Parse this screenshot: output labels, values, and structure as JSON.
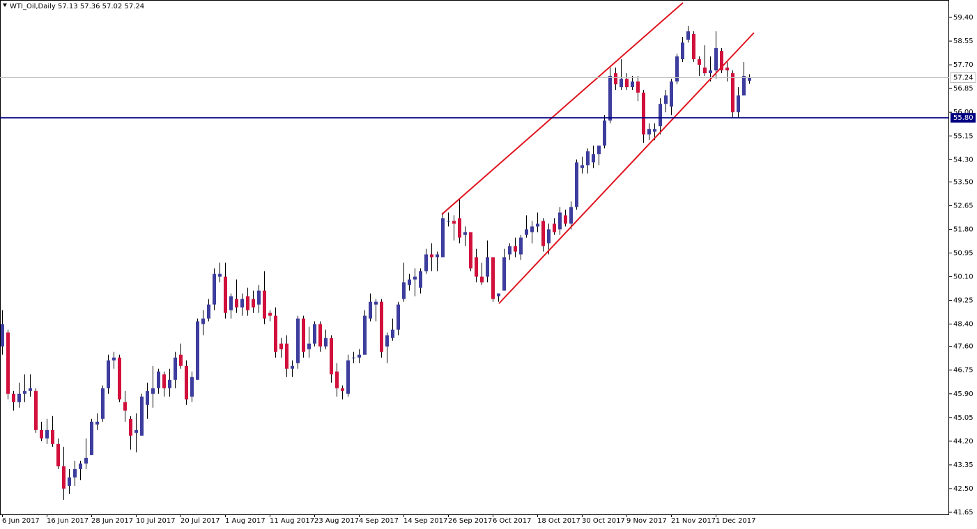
{
  "chart_data": {
    "type": "candlestick",
    "title": "WTI_Oil,Daily  57.13 57.36 57.02 57.24",
    "up_color": "#3d3d9e",
    "down_color": "#d1103c",
    "categories": [
      "6 Jun 2017",
      null,
      null,
      null,
      null,
      null,
      null,
      null,
      "16 Jun 2017",
      null,
      null,
      null,
      null,
      null,
      null,
      null,
      "28 Jun 2017",
      null,
      null,
      null,
      null,
      null,
      null,
      null,
      "10 Jul 2017",
      null,
      null,
      null,
      null,
      null,
      null,
      null,
      "20 Jul 2017",
      null,
      null,
      null,
      null,
      null,
      null,
      null,
      "1 Aug 2017",
      null,
      null,
      null,
      null,
      null,
      null,
      null,
      "11 Aug 2017",
      null,
      null,
      null,
      null,
      null,
      null,
      null,
      "23 Aug 2017",
      null,
      null,
      null,
      null,
      null,
      null,
      null,
      "4 Sep 2017",
      null,
      null,
      null,
      null,
      null,
      null,
      null,
      "14 Sep 2017",
      null,
      null,
      null,
      null,
      null,
      null,
      null,
      "26 Sep 2017",
      null,
      null,
      null,
      null,
      null,
      null,
      null,
      "6 Oct 2017",
      null,
      null,
      null,
      null,
      null,
      null,
      null,
      "18 Oct 2017",
      null,
      null,
      null,
      null,
      null,
      null,
      null,
      "30 Oct 2017",
      null,
      null,
      null,
      null,
      null,
      null,
      null,
      "9 Nov 2017",
      null,
      null,
      null,
      null,
      null,
      null,
      null,
      "21 Nov 2017",
      null,
      null,
      null,
      null,
      null,
      null,
      null,
      "1 Dec 2017",
      null,
      null,
      null,
      null,
      null,
      null
    ],
    "open": [
      47.6,
      48.1,
      45.9,
      45.6,
      45.9,
      46.0,
      46.0,
      44.6,
      44.3,
      44.6,
      44.1,
      43.3,
      42.6,
      42.9,
      43.2,
      43.4,
      43.7,
      44.8,
      45.0,
      46.1,
      47.1,
      47.2,
      45.6,
      45.0,
      44.5,
      44.4,
      45.5,
      45.9,
      46.1,
      46.6,
      46.1,
      46.4,
      47.3,
      46.9,
      45.8,
      46.4,
      48.4,
      48.6,
      49.1,
      50.1,
      50.1,
      48.9,
      49.3,
      49.0,
      49.4,
      49.3,
      49.1,
      49.6,
      48.8,
      48.7,
      47.7,
      47.7,
      46.8,
      47.0,
      48.6,
      47.5,
      47.7,
      48.4,
      47.6,
      47.9,
      46.7,
      46.1,
      45.9,
      47.2,
      47.2,
      47.3,
      48.6,
      49.1,
      49.2,
      47.6,
      47.9,
      48.2,
      49.3,
      49.8,
      50.0,
      49.7,
      50.3,
      50.9,
      50.8,
      50.8,
      52.1,
      52.1,
      52.2,
      51.6,
      51.7,
      50.8,
      50.1,
      50.1,
      50.8,
      49.4,
      49.6,
      50.9,
      51.2,
      50.9,
      51.6,
      51.7,
      51.9,
      52.1,
      51.3,
      52.0,
      51.8,
      52.3,
      52.0,
      52.6,
      54.0,
      54.1,
      54.2,
      54.5,
      54.8,
      55.7,
      57.4,
      56.9,
      57.2,
      56.9,
      57.1,
      56.7,
      55.2,
      55.3,
      55.5,
      56.3,
      56.2,
      57.1,
      57.9,
      58.6,
      58.8,
      57.9,
      57.6,
      57.4,
      57.5,
      58.2,
      57.6,
      57.4,
      56.0,
      56.6,
      57.13
    ],
    "high": [
      48.9,
      48.2,
      46.0,
      46.3,
      46.6,
      46.6,
      46.1,
      44.9,
      45.0,
      45.1,
      44.3,
      44.0,
      43.2,
      43.5,
      43.5,
      44.3,
      45.0,
      45.2,
      46.2,
      47.3,
      47.4,
      47.3,
      46.0,
      45.1,
      45.2,
      45.9,
      46.3,
      46.9,
      46.8,
      46.7,
      46.8,
      47.4,
      47.7,
      47.1,
      46.7,
      48.6,
      48.9,
      49.3,
      50.4,
      50.6,
      50.6,
      49.5,
      50.0,
      49.5,
      49.7,
      49.6,
      49.8,
      50.3,
      48.9,
      49.0,
      47.9,
      48.0,
      47.1,
      48.7,
      48.7,
      48.3,
      48.5,
      48.5,
      48.2,
      48.0,
      47.0,
      46.2,
      47.3,
      47.4,
      47.5,
      48.9,
      49.5,
      49.3,
      49.3,
      48.1,
      48.6,
      49.2,
      50.6,
      50.2,
      50.4,
      50.4,
      51.1,
      51.3,
      51.0,
      52.4,
      52.4,
      52.3,
      52.9,
      51.9,
      51.7,
      51.1,
      50.6,
      51.4,
      50.8,
      49.5,
      51.1,
      51.3,
      51.5,
      51.6,
      52.3,
      52.1,
      52.4,
      52.2,
      52.0,
      52.2,
      52.6,
      52.5,
      52.8,
      54.3,
      54.4,
      54.7,
      54.8,
      54.8,
      55.9,
      57.6,
      57.6,
      57.9,
      57.4,
      57.3,
      57.3,
      56.8,
      55.6,
      55.6,
      56.5,
      56.8,
      57.2,
      58.1,
      58.7,
      59.1,
      58.9,
      58.0,
      58.4,
      58.0,
      58.9,
      58.3,
      57.8,
      57.5,
      56.9,
      57.8,
      57.36
    ],
    "low": [
      47.3,
      45.7,
      45.3,
      45.4,
      45.6,
      45.8,
      44.5,
      44.2,
      44.1,
      44.0,
      43.2,
      42.1,
      42.3,
      42.6,
      42.8,
      43.2,
      43.7,
      44.6,
      44.9,
      45.9,
      46.8,
      45.6,
      44.9,
      43.9,
      43.8,
      44.4,
      45.0,
      45.4,
      45.9,
      45.8,
      45.8,
      46.1,
      46.8,
      45.5,
      45.6,
      46.4,
      48.0,
      48.5,
      48.9,
      49.9,
      48.6,
      48.6,
      48.8,
      48.7,
      48.7,
      48.8,
      48.8,
      48.4,
      48.5,
      47.2,
      47.2,
      46.5,
      46.5,
      46.8,
      47.2,
      47.2,
      47.6,
      47.4,
      47.5,
      46.3,
      45.8,
      45.7,
      45.8,
      47.0,
      47.0,
      47.3,
      48.5,
      48.5,
      47.2,
      47.0,
      47.8,
      48.0,
      49.2,
      49.6,
      49.4,
      49.5,
      50.2,
      50.3,
      50.3,
      50.8,
      51.9,
      51.4,
      51.3,
      51.2,
      50.3,
      49.9,
      49.8,
      49.9,
      49.2,
      49.2,
      49.6,
      50.7,
      50.8,
      50.7,
      51.5,
      51.3,
      51.7,
      51.0,
      50.9,
      51.6,
      51.6,
      51.9,
      51.8,
      52.5,
      53.8,
      53.8,
      54.0,
      54.1,
      54.7,
      55.6,
      56.8,
      56.8,
      56.8,
      56.8,
      56.4,
      54.9,
      55.0,
      55.0,
      55.2,
      56.0,
      55.9,
      57.0,
      57.8,
      58.5,
      57.8,
      57.3,
      57.3,
      57.1,
      57.2,
      57.4,
      57.1,
      55.8,
      55.8,
      56.6,
      57.02
    ],
    "close": [
      48.4,
      45.9,
      45.6,
      45.9,
      46.0,
      46.1,
      44.6,
      44.3,
      44.6,
      44.1,
      43.3,
      42.5,
      42.9,
      43.2,
      43.4,
      43.6,
      44.9,
      44.9,
      46.1,
      47.1,
      47.2,
      45.7,
      45.3,
      44.4,
      44.6,
      45.8,
      46.0,
      46.1,
      46.7,
      46.1,
      46.4,
      47.2,
      46.9,
      45.7,
      46.5,
      48.5,
      48.6,
      49.1,
      50.2,
      50.2,
      48.8,
      49.4,
      49.0,
      49.3,
      48.9,
      49.0,
      49.6,
      48.6,
      48.7,
      47.4,
      47.5,
      46.8,
      46.9,
      48.6,
      47.4,
      47.7,
      48.4,
      47.6,
      47.9,
      46.6,
      46.1,
      46.0,
      47.1,
      47.2,
      47.3,
      48.7,
      49.2,
      49.2,
      47.4,
      48.0,
      48.2,
      49.1,
      49.9,
      50.0,
      50.1,
      50.3,
      50.9,
      50.8,
      50.9,
      52.2,
      52.1,
      52.0,
      51.5,
      51.7,
      50.4,
      50.1,
      49.9,
      50.8,
      49.3,
      49.5,
      50.8,
      51.2,
      51.0,
      51.5,
      51.8,
      51.9,
      52.0,
      51.2,
      51.8,
      51.7,
      52.4,
      52.0,
      52.6,
      54.2,
      54.1,
      54.6,
      54.5,
      54.8,
      55.7,
      57.3,
      57.0,
      57.2,
      56.9,
      57.1,
      56.7,
      55.2,
      55.4,
      55.4,
      56.3,
      56.6,
      57.1,
      58.0,
      58.5,
      58.9,
      57.9,
      57.7,
      57.4,
      57.5,
      58.3,
      57.5,
      57.5,
      56.0,
      56.6,
      57.3,
      57.24
    ],
    "ylim": [
      41.55,
      59.9
    ],
    "yticks": [
      {
        "value": 59.4,
        "label": "59.40"
      },
      {
        "value": 58.55,
        "label": "58.55"
      },
      {
        "value": 57.7,
        "label": "57.70"
      },
      {
        "value": 56.85,
        "label": "56.85"
      },
      {
        "value": 56.0,
        "label": "56.00"
      },
      {
        "value": 55.15,
        "label": "55.15"
      },
      {
        "value": 54.3,
        "label": "54.30"
      },
      {
        "value": 53.5,
        "label": "53.50"
      },
      {
        "value": 52.65,
        "label": "52.65"
      },
      {
        "value": 51.8,
        "label": "51.80"
      },
      {
        "value": 50.95,
        "label": "50.95"
      },
      {
        "value": 50.1,
        "label": "50.10"
      },
      {
        "value": 49.25,
        "label": "49.25"
      },
      {
        "value": 48.4,
        "label": "48.40"
      },
      {
        "value": 47.6,
        "label": "47.60"
      },
      {
        "value": 46.75,
        "label": "46.75"
      },
      {
        "value": 45.9,
        "label": "45.90"
      },
      {
        "value": 45.05,
        "label": "45.05"
      },
      {
        "value": 44.2,
        "label": "44.20"
      },
      {
        "value": 43.35,
        "label": "43.35"
      },
      {
        "value": 42.5,
        "label": "42.50"
      },
      {
        "value": 41.65,
        "label": "41.65"
      }
    ],
    "last_price": {
      "value": 57.24,
      "label": "57.24",
      "color": "#c0c0c0"
    },
    "hline": {
      "value": 55.8,
      "label": "55.80",
      "color": "#000080"
    }
  }
}
